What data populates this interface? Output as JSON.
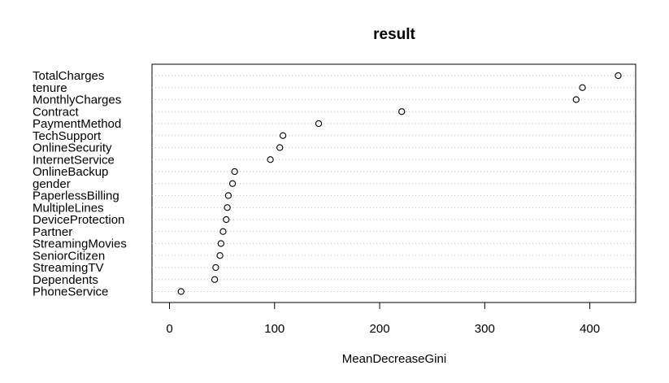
{
  "chart_data": {
    "type": "scatter",
    "title": "result",
    "xlabel": "MeanDecreaseGini",
    "ylabel": "",
    "xlim": [
      -15,
      445
    ],
    "x_ticks": [
      0,
      100,
      200,
      300,
      400
    ],
    "grid": "dotted horizontal lines per variable",
    "legend": "none",
    "colors": {
      "points": "#000000",
      "grid": "#bebebe",
      "axes": "#000000"
    },
    "categories": [
      "TotalCharges",
      "tenure",
      "MonthlyCharges",
      "Contract",
      "PaymentMethod",
      "TechSupport",
      "OnlineSecurity",
      "InternetService",
      "OnlineBackup",
      "gender",
      "PaperlessBilling",
      "MultipleLines",
      "DeviceProtection",
      "Partner",
      "StreamingMovies",
      "SeniorCitizen",
      "StreamingTV",
      "Dependents",
      "PhoneService"
    ],
    "values": [
      427,
      393,
      387,
      221,
      142,
      108,
      105,
      96,
      62,
      60,
      56,
      55,
      54,
      51,
      49,
      48,
      44,
      43,
      11
    ]
  }
}
